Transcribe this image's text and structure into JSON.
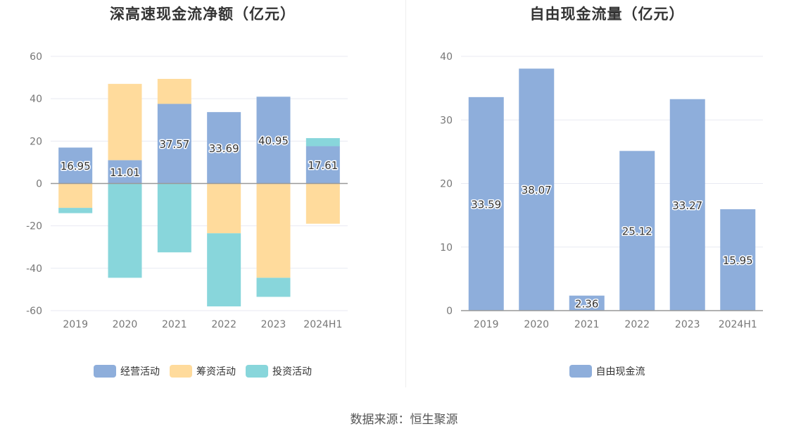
{
  "colors": {
    "operating": "#8eaedb",
    "financing": "#ffdb9c",
    "investing": "#88d6db",
    "grid": "#e8eaf2",
    "axis": "#999999"
  },
  "source_text": "数据来源：恒生聚源",
  "chart_data": [
    {
      "type": "bar",
      "stacked": true,
      "title": "深高速现金流净额（亿元）",
      "categories": [
        "2019",
        "2020",
        "2021",
        "2022",
        "2023",
        "2024H1"
      ],
      "ylim": [
        -60,
        60
      ],
      "yticks": [
        60,
        40,
        20,
        0,
        -20,
        -40,
        -60
      ],
      "grid": true,
      "legend_position": "bottom",
      "series": [
        {
          "name": "经营活动",
          "color_key": "operating",
          "values": [
            16.95,
            11.01,
            37.57,
            33.69,
            40.95,
            17.61
          ],
          "show_labels": true
        },
        {
          "name": "筹资活动",
          "color_key": "financing",
          "values": [
            -11.5,
            36.0,
            11.8,
            -23.5,
            -44.5,
            -19.0
          ],
          "show_labels": false
        },
        {
          "name": "投资活动",
          "color_key": "investing",
          "values": [
            -2.5,
            -44.5,
            -32.5,
            -34.5,
            -9.0,
            3.8
          ],
          "show_labels": false
        }
      ]
    },
    {
      "type": "bar",
      "title": "自由现金流量（亿元）",
      "categories": [
        "2019",
        "2020",
        "2021",
        "2022",
        "2023",
        "2024H1"
      ],
      "ylim": [
        0,
        40
      ],
      "yticks": [
        40,
        30,
        20,
        10,
        0
      ],
      "grid": true,
      "legend_position": "bottom",
      "series": [
        {
          "name": "自由现金流",
          "color_key": "operating",
          "values": [
            33.59,
            38.07,
            2.36,
            25.12,
            33.27,
            15.95
          ],
          "show_labels": true
        }
      ]
    }
  ]
}
